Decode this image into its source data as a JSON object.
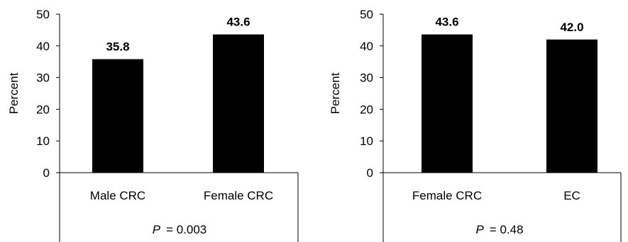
{
  "chart_data": [
    {
      "type": "bar",
      "categories": [
        "Male CRC",
        "Female CRC"
      ],
      "values": [
        35.8,
        43.6
      ],
      "value_labels": [
        "35.8",
        "43.6"
      ],
      "ylabel": "Percent",
      "ylim": [
        0,
        50
      ],
      "yticks": [
        "0",
        "10",
        "20",
        "30",
        "40",
        "50"
      ],
      "p_symbol": "P",
      "p_value": "= 0.003",
      "bar_color": "#000000",
      "grid": false
    },
    {
      "type": "bar",
      "categories": [
        "Female CRC",
        "EC"
      ],
      "values": [
        43.6,
        42.0
      ],
      "value_labels": [
        "43.6",
        "42.0"
      ],
      "ylabel": "Percent",
      "ylim": [
        0,
        50
      ],
      "yticks": [
        "0",
        "10",
        "20",
        "30",
        "40",
        "50"
      ],
      "p_symbol": "P",
      "p_value": "= 0.48",
      "bar_color": "#000000",
      "grid": false
    }
  ]
}
